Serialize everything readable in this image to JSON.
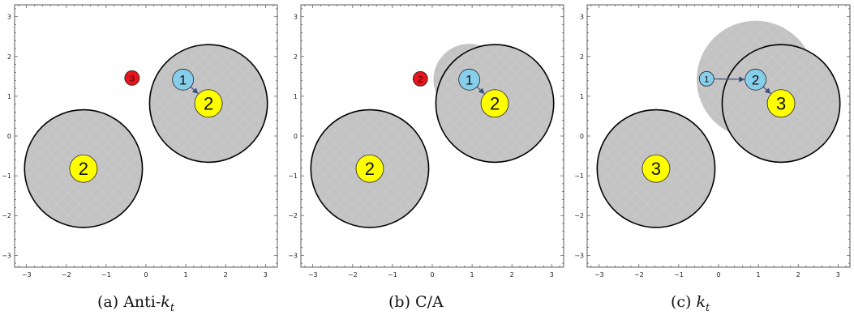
{
  "chart_data": [
    {
      "type": "scatter",
      "panel": "(a)",
      "caption_label": "Anti-",
      "caption_symbol": "k",
      "caption_sub": "t",
      "xlim": [
        -3.3,
        3.3
      ],
      "ylim": [
        -3.3,
        3.3
      ],
      "xticks": [
        -3,
        -2,
        -1,
        0,
        1,
        2,
        3
      ],
      "yticks": [
        -3,
        -2,
        -1,
        0,
        1,
        2,
        3
      ],
      "shadow_discs": [
        {
          "x": -1.57,
          "y": -0.82,
          "r": 1.48
        },
        {
          "x": 1.57,
          "y": 0.82,
          "r": 1.48
        }
      ],
      "jet_circles": [
        {
          "x": -1.57,
          "y": -0.82,
          "r": 1.48
        },
        {
          "x": 1.57,
          "y": 0.82,
          "r": 1.48
        }
      ],
      "particles": [
        {
          "x": -1.57,
          "y": -0.82,
          "label": "2",
          "size": "large",
          "color": "#ffff00"
        },
        {
          "x": 1.57,
          "y": 0.82,
          "label": "2",
          "size": "large",
          "color": "#ffff00"
        },
        {
          "x": 0.93,
          "y": 1.42,
          "label": "1",
          "size": "medium",
          "color": "#87ceeb"
        },
        {
          "x": -0.35,
          "y": 1.46,
          "label": "3",
          "size": "small",
          "color": "#e8141c"
        }
      ],
      "arrows": [
        {
          "from": [
            0.93,
            1.42
          ],
          "to": [
            1.57,
            0.82
          ]
        }
      ]
    },
    {
      "type": "scatter",
      "panel": "(b)",
      "caption_label": "C/A",
      "caption_symbol": "",
      "caption_sub": "",
      "xlim": [
        -3.3,
        3.3
      ],
      "ylim": [
        -3.3,
        3.3
      ],
      "xticks": [
        -3,
        -2,
        -1,
        0,
        1,
        2,
        3
      ],
      "yticks": [
        -3,
        -2,
        -1,
        0,
        1,
        2,
        3
      ],
      "shadow_discs": [
        {
          "x": -1.57,
          "y": -0.82,
          "r": 1.48
        },
        {
          "x": 1.57,
          "y": 0.82,
          "r": 1.48
        },
        {
          "x": 0.93,
          "y": 1.42,
          "r": 0.9
        }
      ],
      "jet_circles": [
        {
          "x": -1.57,
          "y": -0.82,
          "r": 1.48
        },
        {
          "x": 1.57,
          "y": 0.82,
          "r": 1.48
        }
      ],
      "particles": [
        {
          "x": -1.57,
          "y": -0.82,
          "label": "2",
          "size": "large",
          "color": "#ffff00"
        },
        {
          "x": 1.57,
          "y": 0.82,
          "label": "2",
          "size": "large",
          "color": "#ffff00"
        },
        {
          "x": 0.93,
          "y": 1.42,
          "label": "1",
          "size": "medium",
          "color": "#87ceeb"
        },
        {
          "x": -0.3,
          "y": 1.44,
          "label": "2",
          "size": "small",
          "color": "#e8141c"
        }
      ],
      "arrows": [
        {
          "from": [
            0.93,
            1.42
          ],
          "to": [
            1.57,
            0.82
          ]
        }
      ]
    },
    {
      "type": "scatter",
      "panel": "(c)",
      "caption_label": "",
      "caption_symbol": "k",
      "caption_sub": "t",
      "xlim": [
        -3.3,
        3.3
      ],
      "ylim": [
        -3.3,
        3.3
      ],
      "xticks": [
        -3,
        -2,
        -1,
        0,
        1,
        2,
        3
      ],
      "yticks": [
        -3,
        -2,
        -1,
        0,
        1,
        2,
        3
      ],
      "shadow_discs": [
        {
          "x": -1.57,
          "y": -0.82,
          "r": 1.48
        },
        {
          "x": 1.57,
          "y": 0.82,
          "r": 1.48
        },
        {
          "x": 0.93,
          "y": 1.42,
          "r": 1.48
        }
      ],
      "jet_circles": [
        {
          "x": -1.57,
          "y": -0.82,
          "r": 1.48
        },
        {
          "x": 1.57,
          "y": 0.82,
          "r": 1.48
        }
      ],
      "particles": [
        {
          "x": -1.57,
          "y": -0.82,
          "label": "3",
          "size": "large",
          "color": "#ffff00"
        },
        {
          "x": 1.57,
          "y": 0.82,
          "label": "3",
          "size": "large",
          "color": "#ffff00"
        },
        {
          "x": 0.93,
          "y": 1.42,
          "label": "2",
          "size": "medium",
          "color": "#87ceeb"
        },
        {
          "x": -0.3,
          "y": 1.44,
          "label": "1",
          "size": "small",
          "color": "#87ceeb"
        }
      ],
      "arrows": [
        {
          "from": [
            -0.3,
            1.44
          ],
          "to": [
            0.93,
            1.42
          ]
        },
        {
          "from": [
            0.93,
            1.42
          ],
          "to": [
            1.57,
            0.82
          ]
        }
      ]
    }
  ]
}
